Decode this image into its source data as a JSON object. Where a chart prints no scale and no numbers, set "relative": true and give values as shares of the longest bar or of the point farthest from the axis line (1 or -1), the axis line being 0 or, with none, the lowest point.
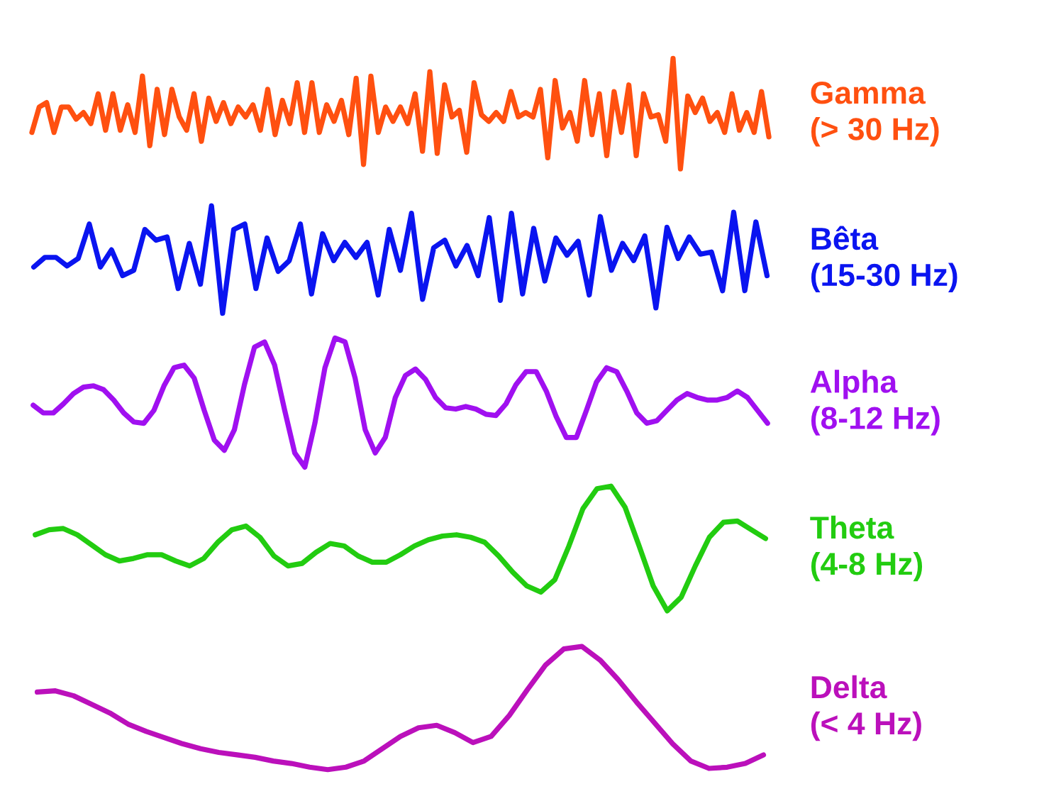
{
  "chart_data": [
    {
      "type": "line",
      "relative": true,
      "categories": [
        null,
        null,
        null,
        null,
        null,
        null,
        null,
        null,
        null,
        null,
        null,
        null,
        null,
        null,
        null,
        null,
        null,
        null,
        null,
        null,
        null,
        null,
        null,
        null,
        null,
        null,
        null,
        null,
        null,
        null,
        null,
        null,
        null,
        null,
        null,
        null,
        null,
        null,
        null,
        null,
        null,
        null,
        null,
        null,
        null,
        null,
        null,
        null,
        null,
        null,
        null,
        null,
        null,
        null,
        null,
        null,
        null,
        null,
        null,
        null,
        null,
        null,
        null,
        null,
        null,
        null,
        null,
        null,
        null,
        null,
        null,
        null,
        null,
        null,
        null,
        null,
        null,
        null,
        null,
        null,
        null,
        null,
        null,
        null,
        null,
        null,
        null,
        null,
        null,
        null,
        null,
        null,
        null,
        null,
        null,
        null,
        null,
        null,
        null,
        null,
        null
      ],
      "series": [
        {
          "name": "Gamma\n(> 30 Hz)",
          "color": "#ff5010",
          "values": [
            0.33,
            0.56,
            0.6,
            0.33,
            0.56,
            0.56,
            0.45,
            0.51,
            0.41,
            0.68,
            0.35,
            0.68,
            0.35,
            0.58,
            0.33,
            0.84,
            0.21,
            0.72,
            0.31,
            0.72,
            0.47,
            0.35,
            0.68,
            0.25,
            0.64,
            0.43,
            0.6,
            0.41,
            0.56,
            0.47,
            0.58,
            0.35,
            0.72,
            0.31,
            0.62,
            0.41,
            0.78,
            0.33,
            0.78,
            0.33,
            0.58,
            0.43,
            0.62,
            0.31,
            0.82,
            0.04,
            0.84,
            0.33,
            0.56,
            0.43,
            0.56,
            0.41,
            0.68,
            0.16,
            0.88,
            0.14,
            0.76,
            0.47,
            0.53,
            0.15,
            0.78,
            0.49,
            0.43,
            0.51,
            0.43,
            0.7,
            0.47,
            0.51,
            0.47,
            0.72,
            0.1,
            0.8,
            0.37,
            0.51,
            0.25,
            0.8,
            0.31,
            0.68,
            0.12,
            0.7,
            0.33,
            0.76,
            0.12,
            0.68,
            0.47,
            0.49,
            0.25,
            1,
            0,
            0.66,
            0.51,
            0.64,
            0.43,
            0.51,
            0.33,
            0.68,
            0.35,
            0.51,
            0.33,
            0.7,
            0.29
          ]
        }
      ]
    },
    {
      "type": "line",
      "relative": true,
      "categories": [
        null,
        null,
        null,
        null,
        null,
        null,
        null,
        null,
        null,
        null,
        null,
        null,
        null,
        null,
        null,
        null,
        null,
        null,
        null,
        null,
        null,
        null,
        null,
        null,
        null,
        null,
        null,
        null,
        null,
        null,
        null,
        null,
        null,
        null,
        null,
        null,
        null,
        null,
        null,
        null,
        null,
        null,
        null,
        null,
        null,
        null,
        null,
        null,
        null,
        null,
        null,
        null,
        null,
        null,
        null,
        null,
        null,
        null,
        null,
        null,
        null,
        null,
        null,
        null,
        null,
        null,
        null
      ],
      "series": [
        {
          "name": "Bêta\n(15-30 Hz)",
          "color": "#0a14f0",
          "values": [
            0.43,
            0.52,
            0.52,
            0.44,
            0.51,
            0.83,
            0.43,
            0.59,
            0.35,
            0.4,
            0.78,
            0.68,
            0.71,
            0.23,
            0.65,
            0.27,
            1,
            0,
            0.78,
            0.83,
            0.23,
            0.7,
            0.39,
            0.49,
            0.83,
            0.18,
            0.74,
            0.49,
            0.66,
            0.52,
            0.66,
            0.17,
            0.78,
            0.4,
            0.93,
            0.13,
            0.61,
            0.68,
            0.44,
            0.63,
            0.35,
            0.89,
            0.12,
            0.93,
            0.18,
            0.79,
            0.3,
            0.7,
            0.54,
            0.67,
            0.17,
            0.9,
            0.4,
            0.65,
            0.49,
            0.72,
            0.05,
            0.8,
            0.51,
            0.71,
            0.55,
            0.57,
            0.21,
            0.94,
            0.21,
            0.85,
            0.35
          ]
        }
      ]
    },
    {
      "type": "line",
      "relative": true,
      "categories": [
        null,
        null,
        null,
        null,
        null,
        null,
        null,
        null,
        null,
        null,
        null,
        null,
        null,
        null,
        null,
        null,
        null,
        null,
        null,
        null,
        null,
        null,
        null,
        null,
        null,
        null,
        null,
        null,
        null,
        null,
        null,
        null,
        null,
        null,
        null,
        null,
        null,
        null,
        null,
        null,
        null,
        null,
        null,
        null,
        null,
        null,
        null,
        null,
        null,
        null,
        null,
        null,
        null,
        null,
        null,
        null,
        null,
        null,
        null,
        null,
        null,
        null,
        null,
        null,
        null,
        null,
        null,
        null,
        null,
        null,
        null,
        null,
        null,
        null
      ],
      "series": [
        {
          "name": "Alpha\n(8-12 Hz)",
          "color": "#a010f0",
          "values": [
            0.48,
            0.42,
            0.42,
            0.49,
            0.57,
            0.62,
            0.63,
            0.6,
            0.52,
            0.42,
            0.35,
            0.34,
            0.44,
            0.63,
            0.77,
            0.79,
            0.69,
            0.44,
            0.21,
            0.13,
            0.29,
            0.64,
            0.93,
            0.97,
            0.79,
            0.44,
            0.11,
            0,
            0.34,
            0.77,
            1,
            0.97,
            0.69,
            0.29,
            0.11,
            0.23,
            0.54,
            0.71,
            0.76,
            0.68,
            0.54,
            0.46,
            0.45,
            0.47,
            0.45,
            0.41,
            0.4,
            0.49,
            0.64,
            0.74,
            0.74,
            0.59,
            0.39,
            0.23,
            0.23,
            0.44,
            0.66,
            0.77,
            0.74,
            0.59,
            0.42,
            0.34,
            0.36,
            0.44,
            0.52,
            0.57,
            0.54,
            0.52,
            0.52,
            0.54,
            0.59,
            0.54,
            0.44,
            0.34
          ]
        }
      ]
    },
    {
      "type": "line",
      "relative": true,
      "categories": [
        null,
        null,
        null,
        null,
        null,
        null,
        null,
        null,
        null,
        null,
        null,
        null,
        null,
        null,
        null,
        null,
        null,
        null,
        null,
        null,
        null,
        null,
        null,
        null,
        null,
        null,
        null,
        null,
        null,
        null,
        null,
        null,
        null,
        null,
        null,
        null,
        null,
        null,
        null,
        null,
        null,
        null,
        null,
        null,
        null,
        null,
        null,
        null,
        null,
        null,
        null,
        null,
        null
      ],
      "series": [
        {
          "name": "Theta\n(4-8 Hz)",
          "color": "#22cc10",
          "values": [
            0.61,
            0.65,
            0.66,
            0.61,
            0.53,
            0.45,
            0.4,
            0.42,
            0.45,
            0.45,
            0.4,
            0.36,
            0.42,
            0.55,
            0.65,
            0.68,
            0.59,
            0.44,
            0.36,
            0.38,
            0.47,
            0.54,
            0.52,
            0.44,
            0.39,
            0.39,
            0.45,
            0.52,
            0.57,
            0.6,
            0.61,
            0.59,
            0.55,
            0.44,
            0.31,
            0.2,
            0.15,
            0.25,
            0.52,
            0.82,
            0.98,
            1,
            0.83,
            0.52,
            0.2,
            0,
            0.11,
            0.36,
            0.59,
            0.71,
            0.72,
            0.65,
            0.58
          ]
        }
      ]
    },
    {
      "type": "line",
      "relative": true,
      "categories": [
        null,
        null,
        null,
        null,
        null,
        null,
        null,
        null,
        null,
        null,
        null,
        null,
        null,
        null,
        null,
        null,
        null,
        null,
        null,
        null,
        null,
        null,
        null,
        null,
        null,
        null,
        null,
        null,
        null,
        null,
        null,
        null,
        null,
        null,
        null,
        null,
        null,
        null,
        null,
        null,
        null
      ],
      "series": [
        {
          "name": "Delta\n(< 4 Hz)",
          "color": "#bb10bb",
          "values": [
            0.63,
            0.64,
            0.6,
            0.53,
            0.46,
            0.37,
            0.31,
            0.26,
            0.21,
            0.17,
            0.14,
            0.12,
            0.1,
            0.07,
            0.05,
            0.02,
            0,
            0.02,
            0.07,
            0.17,
            0.27,
            0.34,
            0.36,
            0.3,
            0.22,
            0.27,
            0.44,
            0.65,
            0.85,
            0.98,
            1,
            0.89,
            0.73,
            0.55,
            0.38,
            0.21,
            0.07,
            0.01,
            0.02,
            0.05,
            0.12
          ]
        }
      ]
    }
  ]
}
